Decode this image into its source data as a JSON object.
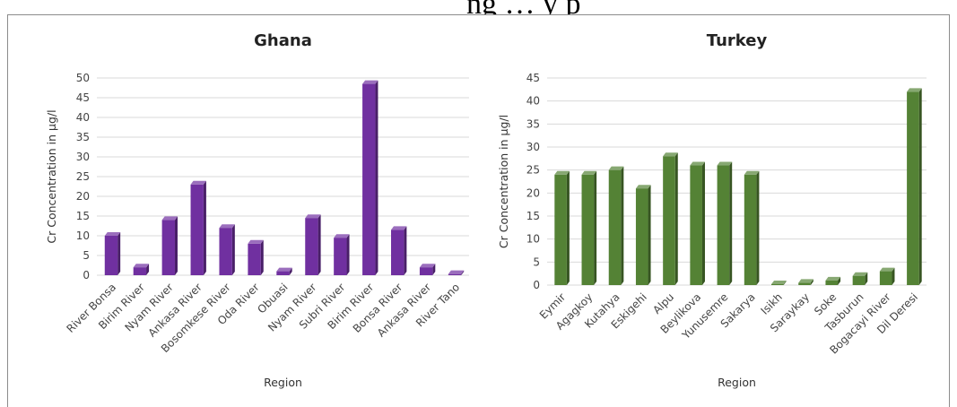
{
  "page": {
    "top_text": "ng … y p"
  },
  "colors": {
    "ghana_bar": "#7030a0",
    "turkey_bar": "#548235",
    "grid": "#d9d9d9"
  },
  "chart_data": [
    {
      "type": "bar",
      "title": "Ghana",
      "xlabel": "Region",
      "ylabel": "Cr Concentration in µg/l",
      "ylim": [
        0,
        50
      ],
      "yticks": [
        0,
        5,
        10,
        15,
        20,
        25,
        30,
        35,
        40,
        45,
        50
      ],
      "grid": true,
      "categories": [
        "River Bonsa",
        "Birim River",
        "Nyam River",
        "Ankasa River",
        "Bosomkese River",
        "Oda River",
        "Obuasi",
        "Nyam River",
        "Subri River",
        "Birim River",
        "Bonsa River",
        "Ankasa River",
        "River Tano"
      ],
      "values": [
        10.0,
        2.0,
        14.0,
        23.0,
        12.0,
        8.0,
        1.0,
        14.5,
        9.5,
        48.5,
        11.5,
        2.0,
        0.3
      ]
    },
    {
      "type": "bar",
      "title": "Turkey",
      "xlabel": "Region",
      "ylabel": "Cr Concentration in µg/l",
      "ylim": [
        0,
        45
      ],
      "yticks": [
        0,
        5,
        10,
        15,
        20,
        25,
        30,
        35,
        40,
        45
      ],
      "grid": true,
      "categories": [
        "Eymir",
        "Agagkoy",
        "Kutahya",
        "Eskigehi",
        "Alpu",
        "Beylikova",
        "Yunusemre",
        "Sakarya",
        "Isikh",
        "Saraykay",
        "Soke",
        "Tasburun",
        "Bogacayi River",
        "Dil Deresi"
      ],
      "values": [
        24.0,
        24.0,
        25.0,
        21.0,
        28.0,
        26.0,
        26.0,
        24.0,
        0.2,
        0.5,
        1.0,
        2.0,
        3.0,
        42.0
      ]
    }
  ]
}
